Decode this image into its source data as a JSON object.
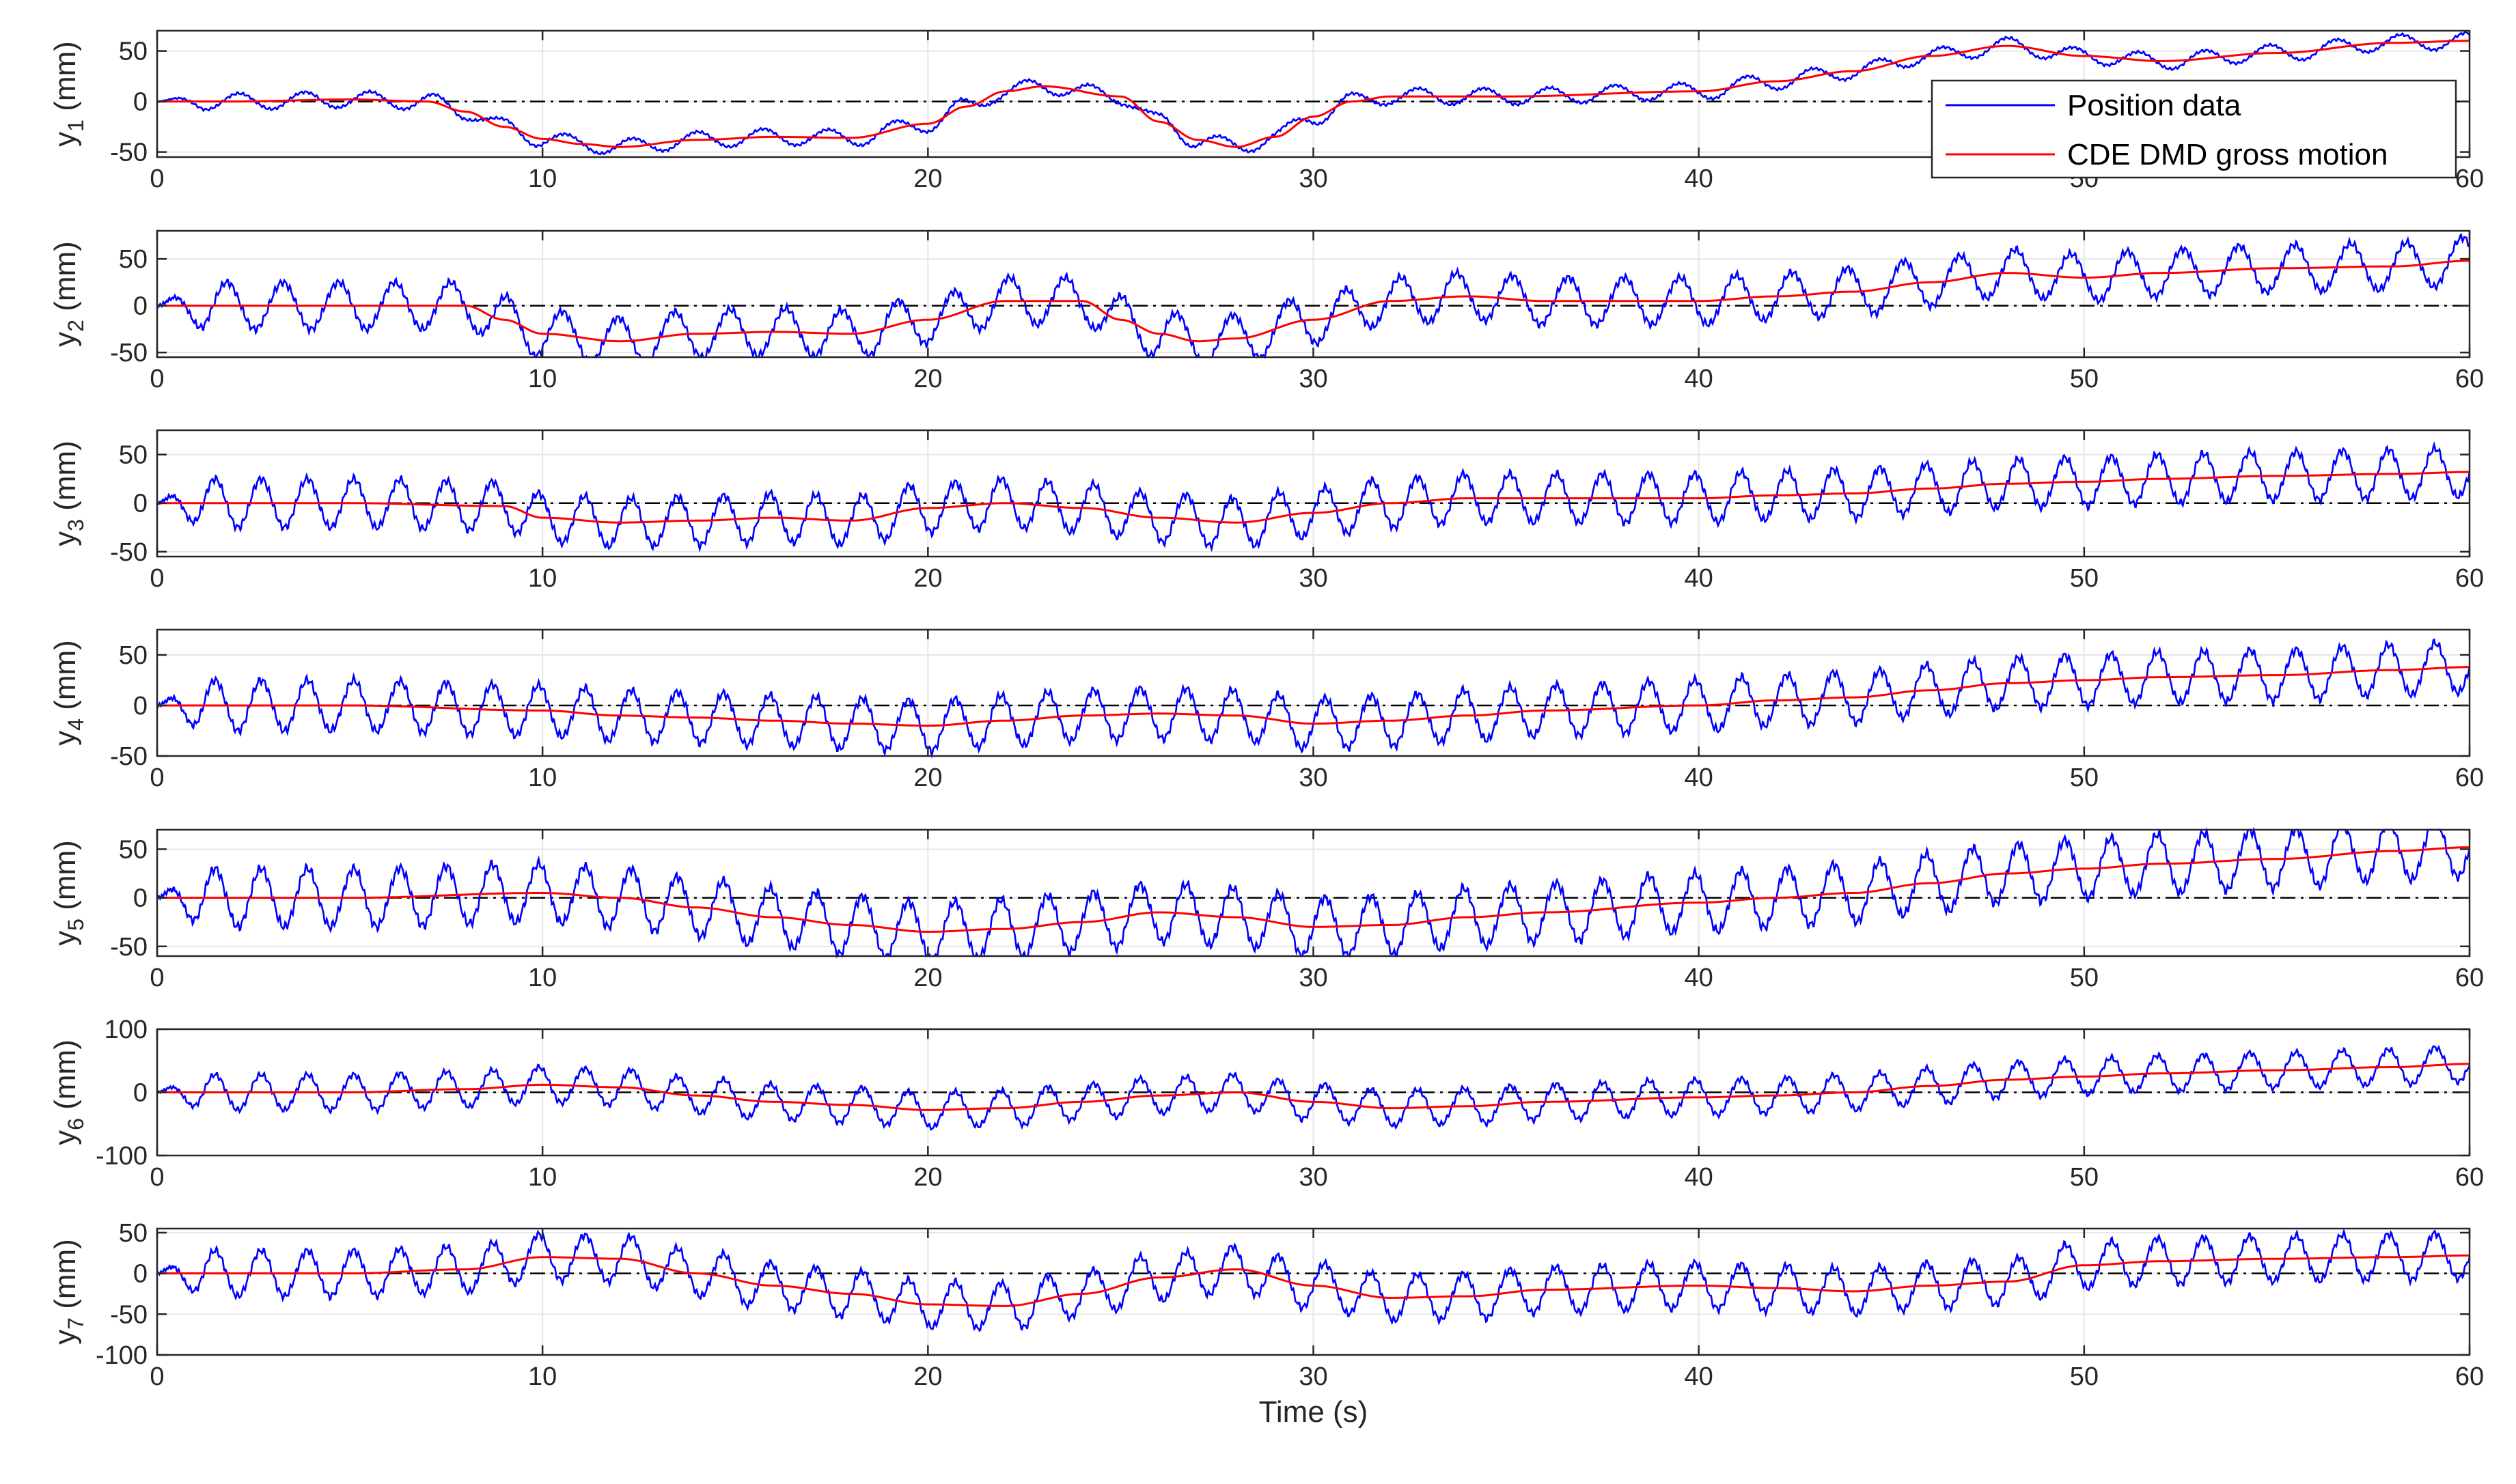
{
  "figure": {
    "xlabel": "Time (s)",
    "legend": {
      "placement": "top-right of first panel",
      "entries": [
        {
          "label": "Position data",
          "color": "#0000ff"
        },
        {
          "label": "CDE DMD gross motion",
          "color": "#ff0000"
        }
      ]
    },
    "colors": {
      "position": "#0000ff",
      "gross": "#ff0000",
      "zero_line": "#000000",
      "grid": "#e6e6e6",
      "axes": "#262626"
    }
  },
  "chart_data": [
    {
      "type": "line",
      "ylabel_main": "y",
      "ylabel_sub": "1",
      "ylabel_unit": " (mm)",
      "xlim": [
        0,
        60
      ],
      "ylim": [
        -55,
        70
      ],
      "xticks": [
        "0",
        "10",
        "20",
        "30",
        "40",
        "50",
        "60"
      ],
      "yticks": [
        -50,
        0,
        50
      ],
      "ytick_labels": [
        "-50",
        "0",
        "50"
      ],
      "grid": true,
      "amplitude": 8,
      "period": 1.7,
      "gross": {
        "x": [
          0,
          2,
          5,
          7,
          8,
          9,
          10,
          11,
          12,
          14,
          16,
          18,
          20,
          21,
          22,
          23,
          25,
          26,
          27,
          28,
          29,
          30,
          31,
          32,
          33,
          35,
          40,
          42,
          44,
          46,
          48,
          50,
          52,
          55,
          58,
          60
        ],
        "y": [
          0,
          0,
          2,
          0,
          -10,
          -25,
          -37,
          -42,
          -45,
          -38,
          -35,
          -36,
          -22,
          -5,
          10,
          15,
          5,
          -20,
          -38,
          -45,
          -35,
          -15,
          0,
          5,
          5,
          5,
          10,
          20,
          30,
          45,
          55,
          45,
          40,
          48,
          58,
          60
        ]
      },
      "series": [
        {
          "name": "Position data",
          "values_note": "gross + oscillation"
        },
        {
          "name": "CDE DMD gross motion"
        }
      ]
    },
    {
      "type": "line",
      "ylabel_main": "y",
      "ylabel_sub": "2",
      "ylabel_unit": " (mm)",
      "xlim": [
        0,
        60
      ],
      "ylim": [
        -55,
        80
      ],
      "xticks": [
        "0",
        "10",
        "20",
        "30",
        "40",
        "50",
        "60"
      ],
      "yticks": [
        -50,
        0,
        50
      ],
      "ytick_labels": [
        "-50",
        "0",
        "50"
      ],
      "grid": true,
      "amplitude": 25,
      "period": 1.45,
      "gross": {
        "x": [
          0,
          2,
          5,
          8,
          9,
          10,
          12,
          14,
          16,
          18,
          20,
          22,
          24,
          25,
          26,
          27,
          28,
          30,
          32,
          34,
          36,
          40,
          42,
          44,
          46,
          48,
          50,
          52,
          55,
          58,
          60
        ],
        "y": [
          0,
          0,
          0,
          0,
          -15,
          -30,
          -38,
          -30,
          -28,
          -30,
          -15,
          5,
          5,
          -15,
          -30,
          -38,
          -35,
          -15,
          5,
          10,
          5,
          5,
          10,
          15,
          25,
          35,
          30,
          35,
          40,
          42,
          48
        ]
      }
    },
    {
      "type": "line",
      "ylabel_main": "y",
      "ylabel_sub": "3",
      "ylabel_unit": " (mm)",
      "xlim": [
        0,
        60
      ],
      "ylim": [
        -55,
        75
      ],
      "xticks": [
        "0",
        "10",
        "20",
        "30",
        "40",
        "50",
        "60"
      ],
      "yticks": [
        -50,
        0,
        50
      ],
      "ytick_labels": [
        "-50",
        "0",
        "50"
      ],
      "grid": true,
      "amplitude": 25,
      "period": 1.2,
      "gross": {
        "x": [
          0,
          5,
          9,
          10,
          12,
          14,
          16,
          18,
          20,
          22,
          24,
          26,
          28,
          30,
          32,
          34,
          36,
          40,
          42,
          44,
          46,
          48,
          50,
          52,
          55,
          58,
          60
        ],
        "y": [
          0,
          0,
          -3,
          -15,
          -20,
          -18,
          -15,
          -18,
          -5,
          0,
          -5,
          -15,
          -20,
          -10,
          0,
          5,
          5,
          5,
          8,
          10,
          15,
          20,
          22,
          25,
          28,
          30,
          32
        ]
      }
    },
    {
      "type": "line",
      "ylabel_main": "y",
      "ylabel_sub": "4",
      "ylabel_unit": " (mm)",
      "xlim": [
        0,
        60
      ],
      "ylim": [
        -50,
        75
      ],
      "xticks": [
        "0",
        "10",
        "20",
        "30",
        "40",
        "50",
        "60"
      ],
      "yticks": [
        -50,
        0,
        50
      ],
      "ytick_labels": [
        "-50",
        "0",
        "50"
      ],
      "grid": true,
      "amplitude": 25,
      "period": 1.2,
      "gross": {
        "x": [
          0,
          5,
          10,
          12,
          14,
          16,
          18,
          20,
          22,
          24,
          26,
          28,
          30,
          32,
          34,
          36,
          40,
          42,
          44,
          46,
          48,
          50,
          52,
          55,
          58,
          60
        ],
        "y": [
          0,
          0,
          -5,
          -10,
          -12,
          -15,
          -18,
          -20,
          -15,
          -10,
          -8,
          -10,
          -18,
          -15,
          -10,
          -5,
          0,
          5,
          8,
          15,
          22,
          25,
          28,
          30,
          35,
          38
        ]
      }
    },
    {
      "type": "line",
      "ylabel_main": "y",
      "ylabel_sub": "5",
      "ylabel_unit": " (mm)",
      "xlim": [
        0,
        60
      ],
      "ylim": [
        -60,
        70
      ],
      "xticks": [
        "0",
        "10",
        "20",
        "30",
        "40",
        "50",
        "60"
      ],
      "yticks": [
        -50,
        0,
        50
      ],
      "ytick_labels": [
        "-50",
        "0",
        "50"
      ],
      "grid": true,
      "amplitude": 30,
      "period": 1.2,
      "gross": {
        "x": [
          0,
          5,
          10,
          12,
          14,
          16,
          18,
          20,
          22,
          24,
          26,
          28,
          30,
          32,
          34,
          36,
          40,
          42,
          44,
          46,
          48,
          50,
          52,
          55,
          58,
          60
        ],
        "y": [
          0,
          0,
          5,
          0,
          -10,
          -20,
          -28,
          -35,
          -32,
          -25,
          -15,
          -20,
          -30,
          -28,
          -20,
          -15,
          -5,
          0,
          5,
          15,
          25,
          30,
          35,
          40,
          48,
          52
        ]
      }
    },
    {
      "type": "line",
      "ylabel_main": "y",
      "ylabel_sub": "6",
      "ylabel_unit": " (mm)",
      "xlim": [
        0,
        60
      ],
      "ylim": [
        -100,
        100
      ],
      "xticks": [
        "0",
        "10",
        "20",
        "30",
        "40",
        "50",
        "60"
      ],
      "yticks": [
        -100,
        0,
        100
      ],
      "ytick_labels": [
        "-100",
        "0",
        "100"
      ],
      "grid": true,
      "amplitude": 28,
      "period": 1.2,
      "gross": {
        "x": [
          0,
          5,
          8,
          10,
          12,
          14,
          16,
          18,
          20,
          22,
          24,
          26,
          28,
          30,
          32,
          34,
          36,
          40,
          42,
          44,
          46,
          48,
          50,
          52,
          55,
          58,
          60
        ],
        "y": [
          0,
          0,
          5,
          12,
          8,
          -5,
          -15,
          -20,
          -28,
          -25,
          -15,
          -5,
          0,
          -15,
          -25,
          -22,
          -15,
          -8,
          -5,
          0,
          10,
          20,
          25,
          30,
          35,
          40,
          45
        ]
      }
    },
    {
      "type": "line",
      "ylabel_main": "y",
      "ylabel_sub": "7",
      "ylabel_unit": " (mm)",
      "xlim": [
        0,
        60
      ],
      "ylim": [
        -100,
        55
      ],
      "xticks": [
        "0",
        "10",
        "20",
        "30",
        "40",
        "50",
        "60"
      ],
      "yticks": [
        -100,
        -50,
        0,
        50
      ],
      "ytick_labels": [
        "-100",
        "-50",
        "0",
        "50"
      ],
      "grid": true,
      "amplitude": 28,
      "period": 1.2,
      "gross": {
        "x": [
          0,
          5,
          8,
          10,
          12,
          14,
          16,
          18,
          20,
          22,
          24,
          26,
          28,
          30,
          32,
          34,
          36,
          40,
          42,
          44,
          46,
          48,
          50,
          52,
          55,
          58,
          60
        ],
        "y": [
          0,
          0,
          5,
          20,
          18,
          0,
          -15,
          -25,
          -38,
          -40,
          -25,
          -5,
          5,
          -15,
          -30,
          -28,
          -20,
          -15,
          -18,
          -22,
          -15,
          -10,
          10,
          15,
          18,
          20,
          22
        ]
      }
    }
  ]
}
